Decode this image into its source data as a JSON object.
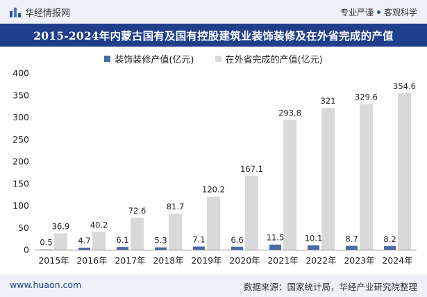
{
  "header": {
    "brand": "华经情报网",
    "slogan_left": "专业严谨",
    "slogan_right": "客观科学"
  },
  "footer": {
    "website": "www.huaon.com",
    "source": "数据来源：国家统计局，华经产业研究院整理"
  },
  "colors": {
    "header_bg": "#eef2f8",
    "title_bg": "#1f3f8a",
    "series_decoration": "#4a6aa8",
    "series_outside": "#d9d9d9"
  },
  "chart_data": {
    "type": "bar",
    "title": "2015-2024年内蒙古国有及国有控股建筑业装饰装修及在外省完成的产值",
    "categories": [
      "2015年",
      "2016年",
      "2017年",
      "2018年",
      "2019年",
      "2020年",
      "2021年",
      "2022年",
      "2023年",
      "2024年"
    ],
    "series": [
      {
        "name": "装饰装修产值(亿元)",
        "values": [
          0.5,
          4.7,
          6.1,
          5.3,
          7.1,
          6.6,
          11.5,
          10.1,
          8.7,
          8.2
        ]
      },
      {
        "name": "在外省完成的产值(亿元)",
        "values": [
          36.9,
          40.2,
          72.6,
          81.7,
          120.2,
          167.1,
          293.8,
          321,
          329.6,
          354.6
        ]
      }
    ],
    "ylim": [
      0,
      400
    ],
    "yticks": [
      0,
      50,
      100,
      150,
      200,
      250,
      300,
      350,
      400
    ],
    "xlabel": "",
    "ylabel": "",
    "legend_position": "top-center",
    "grid": false
  }
}
